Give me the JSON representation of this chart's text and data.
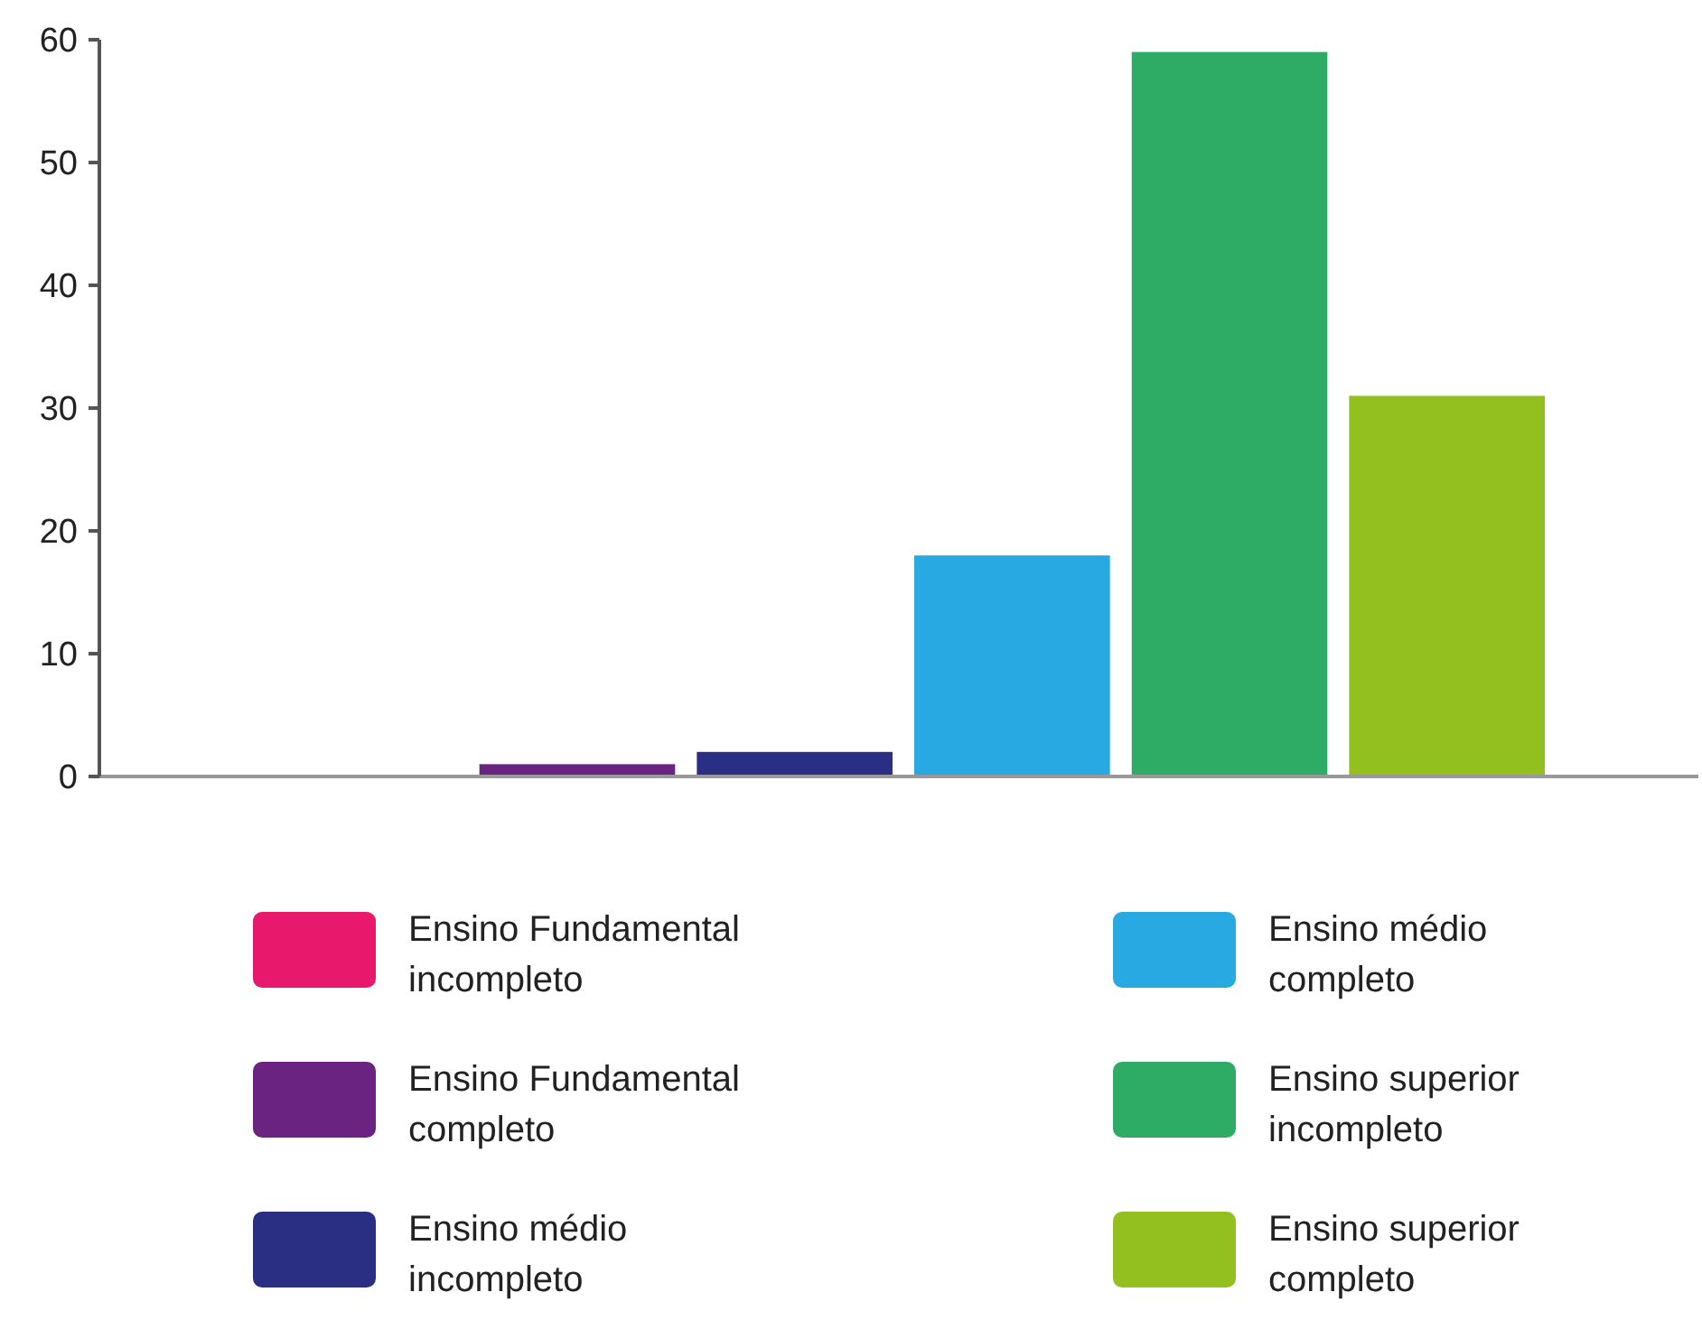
{
  "chart_data": {
    "type": "bar",
    "categories": [
      null
    ],
    "series": [
      {
        "name": "Ensino Fundamental incompleto",
        "color": "#e8186d",
        "values": [
          0
        ]
      },
      {
        "name": "Ensino Fundamental completo",
        "color": "#6b2381",
        "values": [
          1
        ]
      },
      {
        "name": "Ensino médio incompleto",
        "color": "#2b2f83",
        "values": [
          2
        ]
      },
      {
        "name": "Ensino médio completo",
        "color": "#29a9e1",
        "values": [
          18
        ]
      },
      {
        "name": "Ensino superior incompleto",
        "color": "#2eac66",
        "values": [
          59
        ]
      },
      {
        "name": "Ensino superior completo",
        "color": "#93c01f",
        "values": [
          31
        ]
      }
    ],
    "ylim": [
      0,
      60
    ],
    "yticks": [
      0,
      10,
      20,
      30,
      40,
      50,
      60
    ],
    "grid": false,
    "legend": "bottom"
  }
}
